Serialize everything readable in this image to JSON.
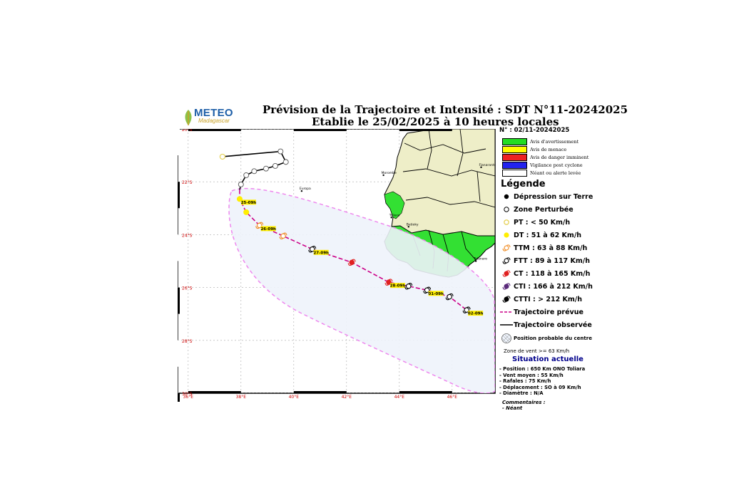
{
  "title_line1": "Prévision de la Trajectoire et Intensité : SDT N°11-20242025",
  "title_line2": "Etablie le 25/02/2025 à 10 heures locales",
  "logo": {
    "text": "METEO",
    "subtext": "Madagascar"
  },
  "bulletin_number": "N° : 02/11-20242025",
  "alerts": [
    {
      "label": "Avis d'avertissement",
      "color": "#22dd22"
    },
    {
      "label": "Avis de menace",
      "color": "#ffff00"
    },
    {
      "label": "Avis de danger imminent",
      "color": "#ee2222"
    },
    {
      "label": "Vigilance post cyclone",
      "color": "#2222ee"
    },
    {
      "label": "Néant ou alerte levée",
      "color": "#ffffff"
    }
  ],
  "legend_title": "Légende",
  "legend_items": [
    {
      "symbol": "filled-dot",
      "label": "Dépression sur Terre"
    },
    {
      "symbol": "open-circle",
      "label": "Zone Perturbée"
    },
    {
      "symbol": "yellow-ring",
      "label": "PT : < 50 Km/h"
    },
    {
      "symbol": "yellow-dot",
      "label": "DT : 51 à 62 Km/h"
    },
    {
      "symbol": "cyclone-orange-open",
      "label": "TTM : 63 à 88 Km/h"
    },
    {
      "symbol": "cyclone-black-open",
      "label": "FTT : 89 à 117 Km/h"
    },
    {
      "symbol": "cyclone-red",
      "label": "CT : 118 à 165 Km/h"
    },
    {
      "symbol": "cyclone-purple",
      "label": "CTI : 166 à 212 Km/h"
    },
    {
      "symbol": "cyclone-black",
      "label": "CTTI : > 212 Km/h"
    },
    {
      "symbol": "dashed-line",
      "label": "Trajectoire prévue"
    },
    {
      "symbol": "solid-line",
      "label": "Trajectoire observée"
    },
    {
      "symbol": "hatched-circle",
      "label": "Position probable du centre"
    }
  ],
  "wind_zone_label": "Zone de vent >= 63 Km/h",
  "situation": {
    "title": "Situation actuelle",
    "lines": [
      "- Position : 650 Km ONO Toliara",
      "- Vent moyen : 55 Km/h",
      "- Rafales : 75 Km/h",
      "- Déplacement : SO à 09 Km/h",
      "- Diamètre : N/A"
    ],
    "comments_label": "Commentaires :",
    "comments_value": "- Néant"
  },
  "map": {
    "lon_ticks": [
      "36°E",
      "38°E",
      "40°E",
      "42°E",
      "44°E",
      "46°E"
    ],
    "lat_ticks": [
      "20°S",
      "22°S",
      "24°S",
      "26°S",
      "28°S",
      "30°S"
    ],
    "places": [
      {
        "name": "Europa",
        "lon": 40.3,
        "lat": 22.35
      },
      {
        "name": "Morombe",
        "lon": 43.4,
        "lat": 21.75
      },
      {
        "name": "Toliara",
        "lon": 43.7,
        "lat": 23.35
      },
      {
        "name": "Betioky",
        "lon": 44.35,
        "lat": 23.7
      },
      {
        "name": "Tolanaro",
        "lon": 46.9,
        "lat": 25.0
      },
      {
        "name": "Fianarantsoa",
        "lon": 47.1,
        "lat": 21.45
      }
    ],
    "observed_track": [
      {
        "lon": 37.3,
        "lat": 21.05
      },
      {
        "lon": 39.5,
        "lat": 20.85
      },
      {
        "lon": 39.7,
        "lat": 21.25
      },
      {
        "lon": 39.3,
        "lat": 21.4
      },
      {
        "lon": 38.95,
        "lat": 21.5
      },
      {
        "lon": 38.5,
        "lat": 21.6
      },
      {
        "lon": 38.2,
        "lat": 21.75
      },
      {
        "lon": 38.0,
        "lat": 22.1
      },
      {
        "lon": 37.95,
        "lat": 22.3
      }
    ],
    "forecast": [
      {
        "lon": 37.95,
        "lat": 22.65,
        "label": "25-09h",
        "cat": "DT"
      },
      {
        "lon": 38.2,
        "lat": 23.15,
        "label": "",
        "cat": "DT"
      },
      {
        "lon": 38.7,
        "lat": 23.65,
        "label": "26-09h",
        "cat": "TTM"
      },
      {
        "lon": 39.6,
        "lat": 24.05,
        "label": "",
        "cat": "TTM"
      },
      {
        "lon": 40.7,
        "lat": 24.55,
        "label": "27-09h",
        "cat": "FTT"
      },
      {
        "lon": 42.2,
        "lat": 25.05,
        "label": "",
        "cat": "CT"
      },
      {
        "lon": 43.6,
        "lat": 25.8,
        "label": "28-09h",
        "cat": "CT"
      },
      {
        "lon": 44.35,
        "lat": 25.95,
        "label": "",
        "cat": "FTT"
      },
      {
        "lon": 45.05,
        "lat": 26.1,
        "label": "01-09h",
        "cat": "FTT"
      },
      {
        "lon": 45.9,
        "lat": 26.35,
        "label": "",
        "cat": "FTT"
      },
      {
        "lon": 46.55,
        "lat": 26.85,
        "label": "02-09h",
        "cat": "FTT"
      }
    ]
  }
}
